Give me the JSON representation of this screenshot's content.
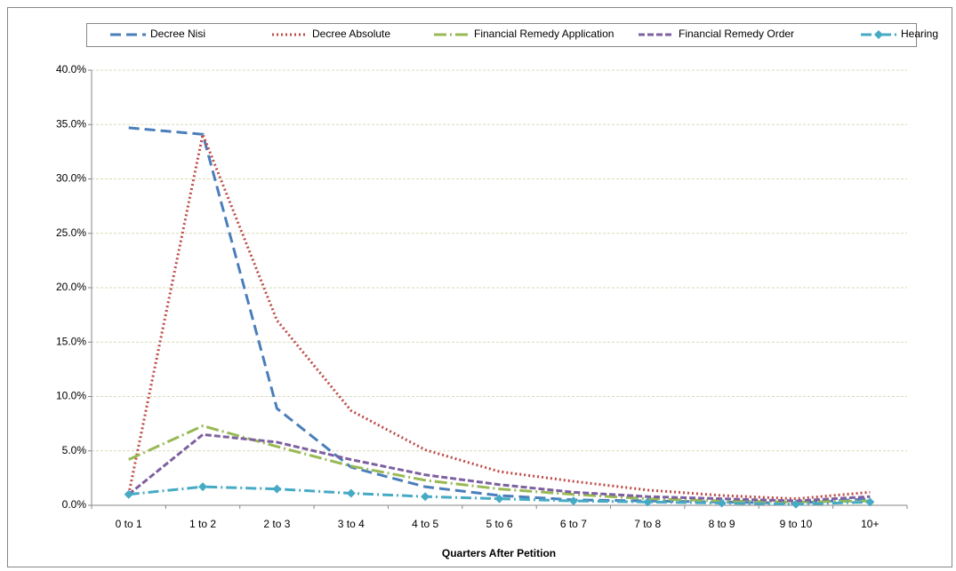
{
  "chart_data": {
    "type": "line",
    "x_label": "Quarters After Petition",
    "categories": [
      "0 to 1",
      "1 to 2",
      "2 to 3",
      "3 to 4",
      "4 to 5",
      "5 to 6",
      "6 to 7",
      "7 to 8",
      "8 to 9",
      "9 to 10",
      "10+"
    ],
    "series": [
      {
        "name": "Decree Nisi",
        "color": "#4a7ebb",
        "values": [
          34.7,
          34.1,
          8.9,
          3.5,
          1.7,
          0.9,
          0.5,
          0.4,
          0.3,
          0.2,
          0.6
        ]
      },
      {
        "name": "Decree Absolute",
        "color": "#be4b48",
        "values": [
          1.0,
          34.1,
          17.0,
          8.7,
          5.1,
          3.1,
          2.2,
          1.4,
          0.9,
          0.6,
          1.2
        ]
      },
      {
        "name": "Financial Remedy Application",
        "color": "#98b954",
        "values": [
          4.2,
          7.3,
          5.4,
          3.6,
          2.3,
          1.5,
          1.0,
          0.6,
          0.4,
          0.3,
          0.4
        ]
      },
      {
        "name": "Financial Remedy Order",
        "color": "#7d60a0",
        "values": [
          1.0,
          6.5,
          5.8,
          4.2,
          2.8,
          1.9,
          1.2,
          0.8,
          0.6,
          0.4,
          0.8
        ]
      },
      {
        "name": "Hearing",
        "color": "#46aac5",
        "values": [
          1.0,
          1.7,
          1.5,
          1.1,
          0.8,
          0.6,
          0.4,
          0.3,
          0.2,
          0.1,
          0.3
        ]
      }
    ],
    "ylim": [
      0,
      40
    ],
    "yticks": [
      {
        "value": 0,
        "label": "0.0%"
      },
      {
        "value": 5,
        "label": "5.0%"
      },
      {
        "value": 10,
        "label": "10.0%"
      },
      {
        "value": 15,
        "label": "15.0%"
      },
      {
        "value": 20,
        "label": "20.0%"
      },
      {
        "value": 25,
        "label": "25.0%"
      },
      {
        "value": 30,
        "label": "30.0%"
      },
      {
        "value": 35,
        "label": "35.0%"
      },
      {
        "value": 40,
        "label": "40.0%"
      }
    ],
    "grid": true,
    "legend": "top"
  }
}
